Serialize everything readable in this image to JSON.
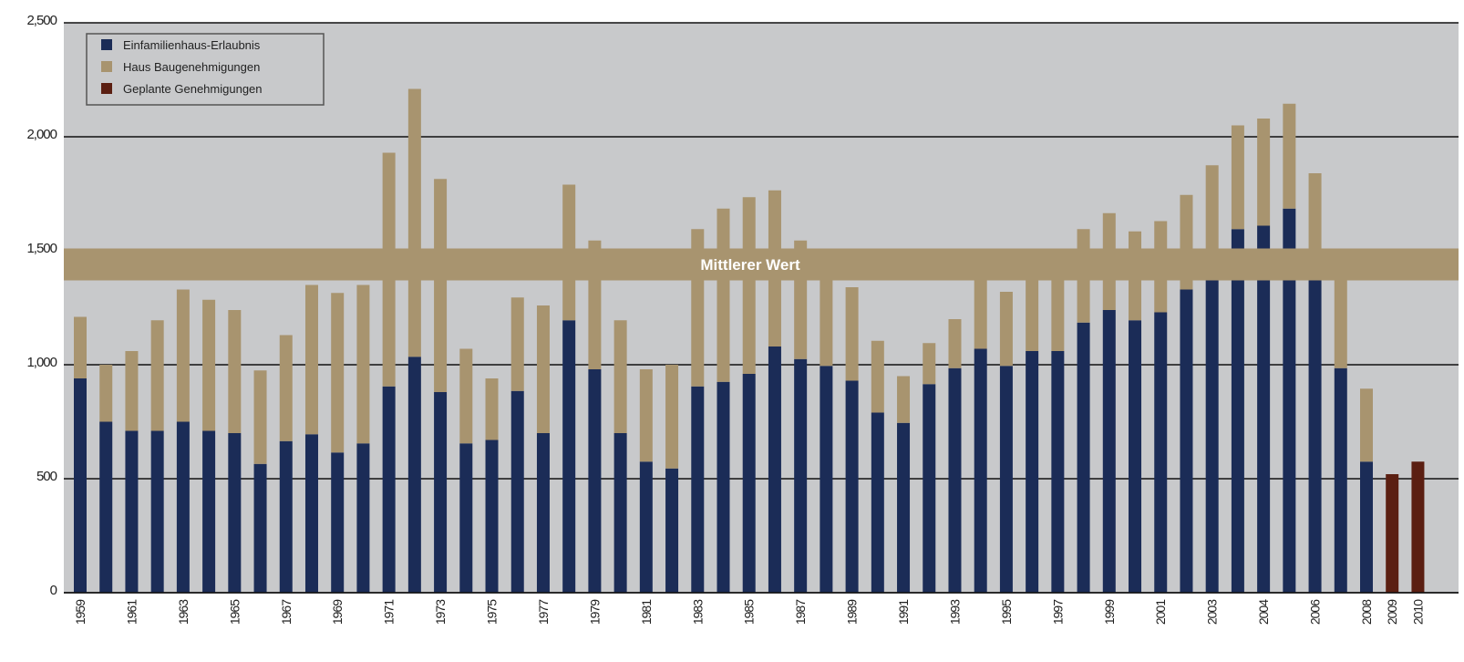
{
  "chart_data": {
    "type": "stacked_bar",
    "categories": [
      "1959",
      null,
      "1961",
      null,
      "1963",
      null,
      "1965",
      null,
      "1967",
      null,
      "1969",
      null,
      "1971",
      null,
      "1973",
      null,
      "1975",
      null,
      "1977",
      null,
      "1979",
      null,
      "1981",
      null,
      "1983",
      null,
      "1985",
      null,
      "1987",
      null,
      "1989",
      null,
      "1991",
      null,
      "1993",
      null,
      "1995",
      null,
      "1997",
      null,
      "1999",
      null,
      "2001",
      null,
      "2003",
      null,
      "2004",
      null,
      "2006",
      null,
      "2008",
      "2009",
      "2010"
    ],
    "series": [
      {
        "name": "Einfamilienhaus-Erlaubnis",
        "color": "#1b2c57",
        "values": [
          940,
          750,
          710,
          710,
          750,
          710,
          700,
          565,
          665,
          695,
          615,
          655,
          905,
          1035,
          880,
          655,
          670,
          885,
          700,
          1195,
          980,
          700,
          575,
          545,
          905,
          925,
          960,
          1080,
          1025,
          995,
          930,
          790,
          745,
          915,
          985,
          1070,
          995,
          1060,
          1060,
          1185,
          1240,
          1195,
          1230,
          1330,
          1380,
          1595,
          1610,
          1685,
          1380,
          985,
          575,
          null,
          null
        ]
      },
      {
        "name": "Haus Baugenehmigungen",
        "color": "#a8946f",
        "values": [
          270,
          250,
          350,
          485,
          580,
          575,
          540,
          410,
          465,
          655,
          700,
          695,
          1025,
          1175,
          935,
          415,
          270,
          410,
          560,
          595,
          565,
          495,
          405,
          455,
          690,
          760,
          775,
          685,
          520,
          385,
          410,
          315,
          205,
          180,
          215,
          310,
          325,
          320,
          320,
          410,
          425,
          390,
          400,
          415,
          495,
          455,
          470,
          460,
          460,
          395,
          320,
          null,
          null
        ]
      },
      {
        "name": "Geplante Genehmigungen",
        "color": "#5b1f12",
        "values": [
          null,
          null,
          null,
          null,
          null,
          null,
          null,
          null,
          null,
          null,
          null,
          null,
          null,
          null,
          null,
          null,
          null,
          null,
          null,
          null,
          null,
          null,
          null,
          null,
          null,
          null,
          null,
          null,
          null,
          null,
          null,
          null,
          null,
          null,
          null,
          null,
          null,
          null,
          null,
          null,
          null,
          null,
          null,
          null,
          null,
          null,
          null,
          null,
          null,
          null,
          null,
          520,
          575
        ]
      }
    ],
    "band": {
      "label": "Mittlerer Wert",
      "range": [
        1370,
        1510
      ],
      "color": "#a8946f"
    },
    "ylim": [
      0,
      2500
    ],
    "yticks": [
      0,
      500,
      {
        "value": 1000,
        "label": "1,000"
      },
      {
        "value": 1500,
        "label": "1,500"
      },
      {
        "value": 2000,
        "label": "2,000"
      },
      {
        "value": 2500,
        "label": "2,500"
      }
    ],
    "grid": true,
    "background": "#c8c9cb",
    "legend": "top-left"
  }
}
